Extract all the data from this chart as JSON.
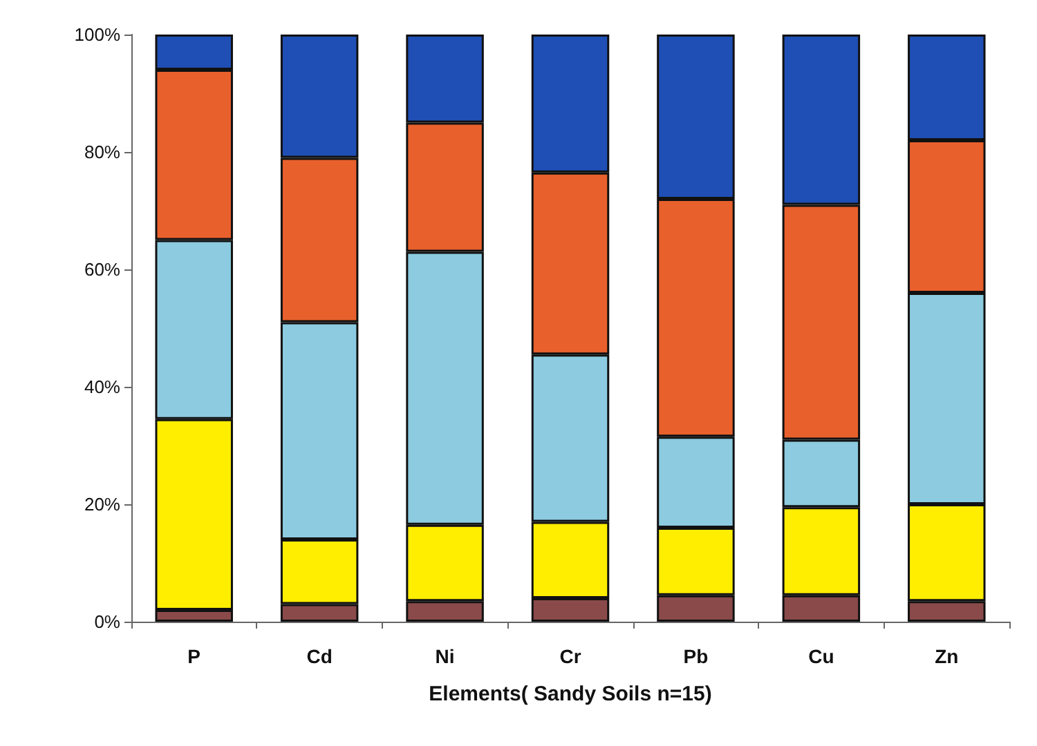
{
  "chart_data": {
    "type": "bar",
    "stacked": true,
    "xlabel": "Elements( Sandy Soils n=15)",
    "categories": [
      "P",
      "Cd",
      "Ni",
      "Cr",
      "Pb",
      "Cu",
      "Zn"
    ],
    "series": [
      {
        "color": "#8b4a4a",
        "values": [
          2,
          3,
          3.5,
          4,
          4.5,
          4.5,
          3.5
        ]
      },
      {
        "color": "#ffee00",
        "values": [
          32.5,
          11,
          13,
          13,
          11.5,
          15,
          16.5
        ]
      },
      {
        "color": "#8ccbe0",
        "values": [
          30.5,
          37,
          46.5,
          28.5,
          15.5,
          11.5,
          36
        ]
      },
      {
        "color": "#e8602c",
        "values": [
          29,
          28,
          22,
          31,
          40.5,
          40,
          26
        ]
      },
      {
        "color": "#1f4fb5",
        "values": [
          6,
          21,
          15,
          23.5,
          28,
          29,
          18
        ]
      }
    ],
    "ylim": [
      0,
      100
    ],
    "yticks": [
      {
        "value": 0,
        "label": "0%"
      },
      {
        "value": 20,
        "label": "20%"
      },
      {
        "value": 40,
        "label": "40%"
      },
      {
        "value": 60,
        "label": "60%"
      },
      {
        "value": 80,
        "label": "80%"
      },
      {
        "value": 100,
        "label": "100%"
      }
    ],
    "grid": false
  }
}
